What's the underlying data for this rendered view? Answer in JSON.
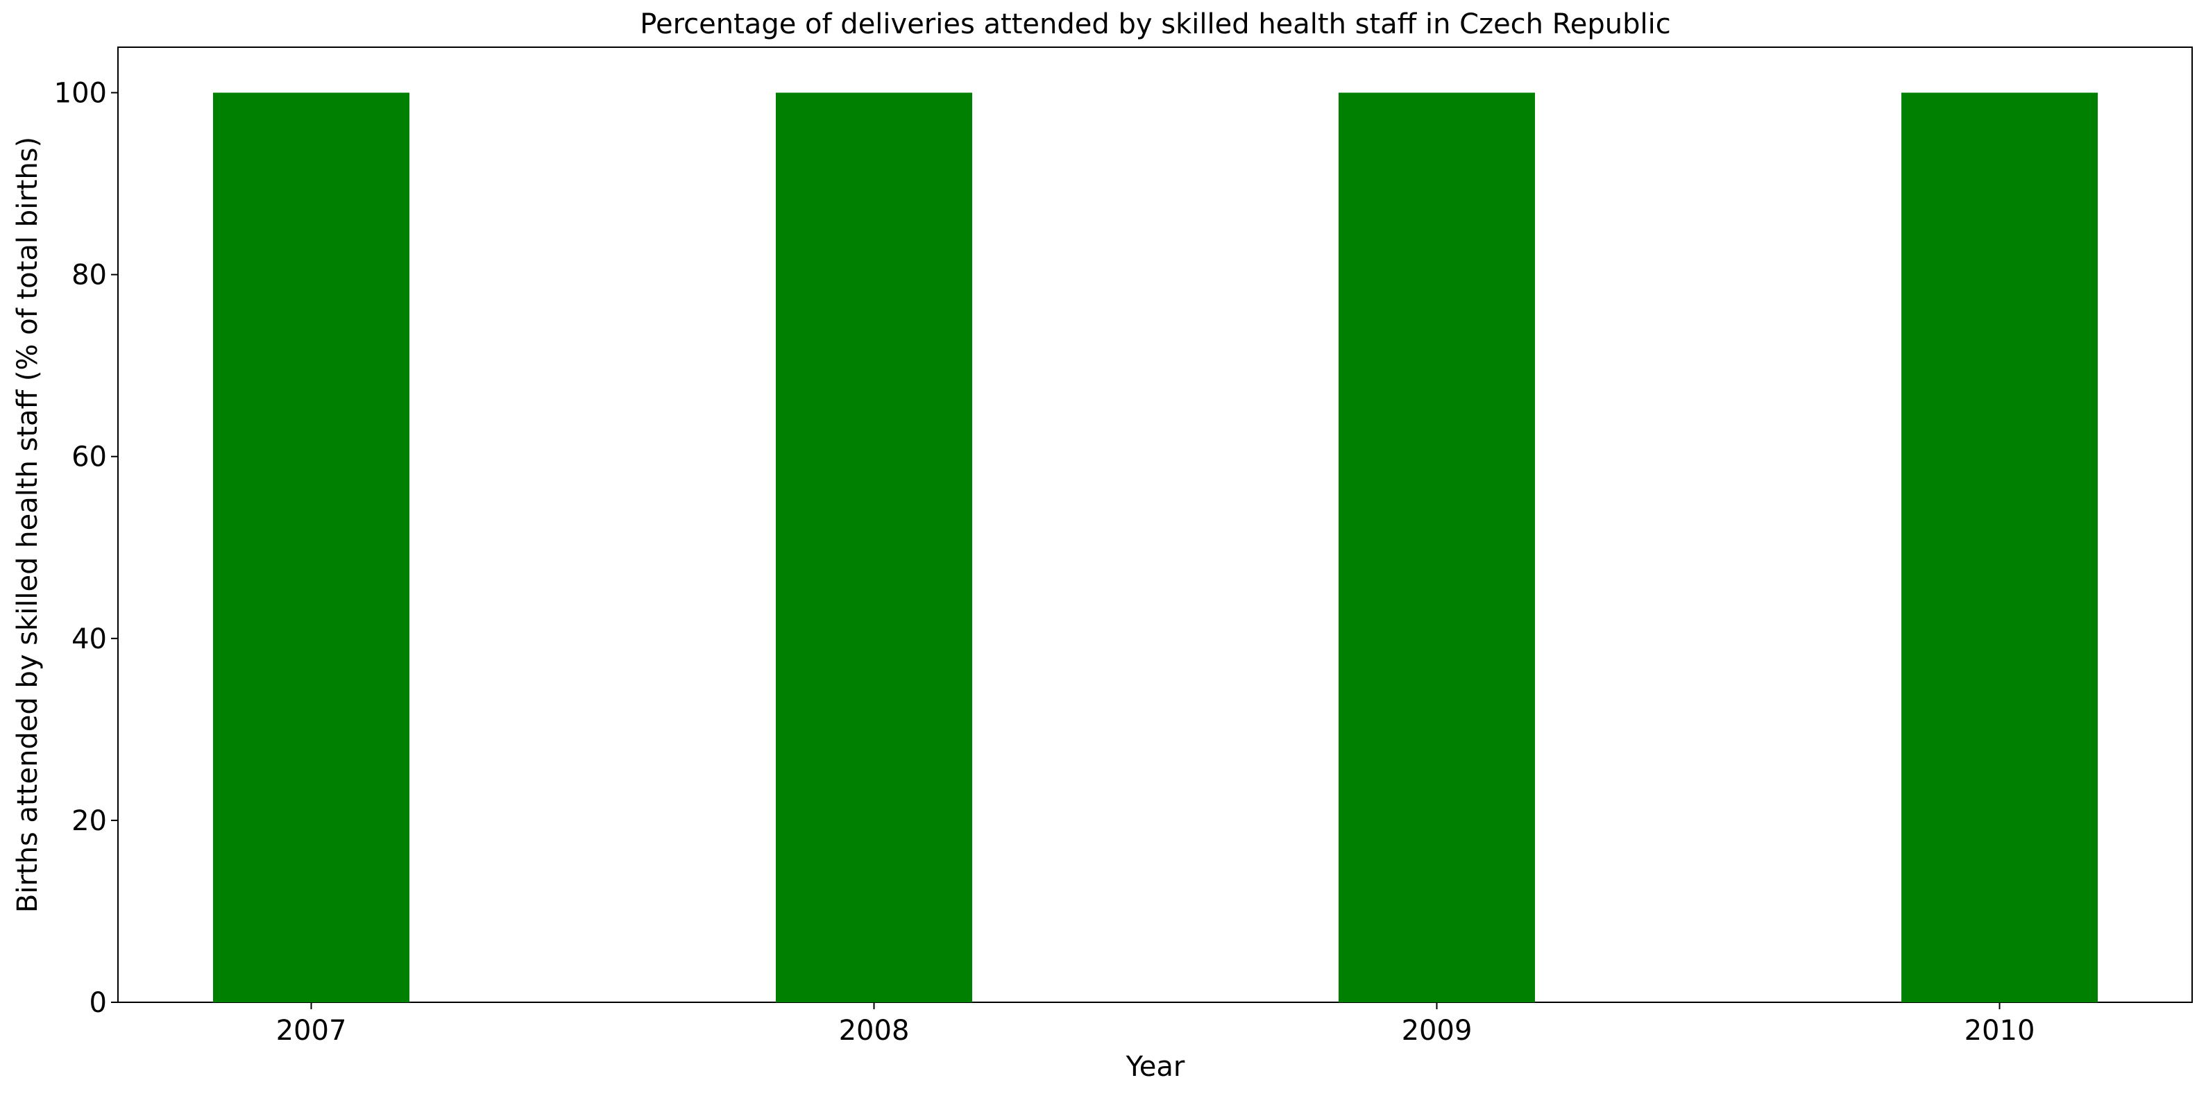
{
  "chart_data": {
    "type": "bar",
    "title": "Percentage of deliveries attended by skilled health staff in Czech Republic",
    "xlabel": "Year",
    "ylabel": "Births attended by skilled health staff (% of total births)",
    "categories": [
      "2007",
      "2008",
      "2009",
      "2010"
    ],
    "values": [
      100,
      100,
      100,
      100
    ],
    "ylim": [
      0,
      105
    ],
    "yticks": [
      0,
      20,
      40,
      60,
      80,
      100
    ],
    "bar_color": "#008000",
    "grid": false,
    "legend": "none"
  }
}
